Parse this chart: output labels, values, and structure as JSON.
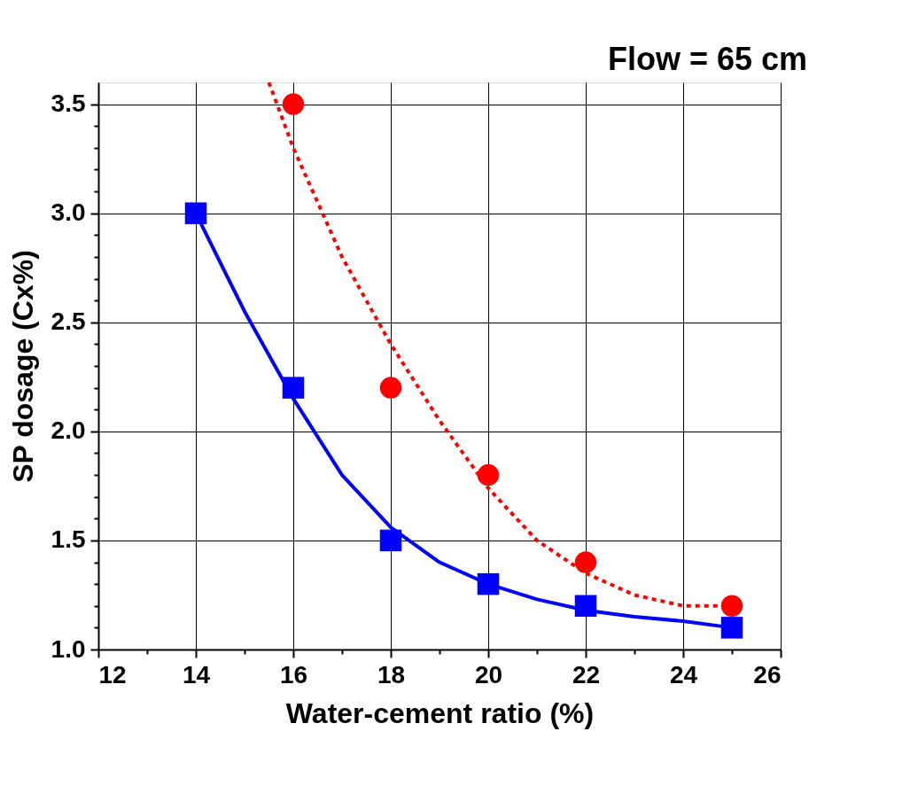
{
  "chart_data": {
    "type": "scatter",
    "xlabel": "Water-cement ratio (%)",
    "ylabel": "SP dosage (Cx%)",
    "annotations": [
      "Flow = 65 cm"
    ],
    "xlim": [
      12,
      26
    ],
    "ylim": [
      1.0,
      3.6
    ],
    "xticks": [
      12,
      {
        "value": 13,
        "label": null
      },
      14,
      {
        "value": 15,
        "label": null
      },
      16,
      {
        "value": 17,
        "label": null
      },
      18,
      {
        "value": 19,
        "label": null
      },
      20,
      {
        "value": 21,
        "label": null
      },
      22,
      {
        "value": 23,
        "label": null
      },
      24,
      {
        "value": 25,
        "label": null
      },
      26
    ],
    "yticks": [
      {
        "value": 1.0,
        "label": "1.0"
      },
      {
        "value": 1.1,
        "label": null
      },
      {
        "value": 1.2,
        "label": null
      },
      {
        "value": 1.3,
        "label": null
      },
      {
        "value": 1.4,
        "label": null
      },
      {
        "value": 1.5,
        "label": "1.5"
      },
      {
        "value": 1.6,
        "label": null
      },
      {
        "value": 1.7,
        "label": null
      },
      {
        "value": 1.8,
        "label": null
      },
      {
        "value": 1.9,
        "label": null
      },
      {
        "value": 2.0,
        "label": "2.0"
      },
      {
        "value": 2.1,
        "label": null
      },
      {
        "value": 2.2,
        "label": null
      },
      {
        "value": 2.3,
        "label": null
      },
      {
        "value": 2.4,
        "label": null
      },
      {
        "value": 2.5,
        "label": "2.5"
      },
      {
        "value": 2.6,
        "label": null
      },
      {
        "value": 2.7,
        "label": null
      },
      {
        "value": 2.8,
        "label": null
      },
      {
        "value": 2.9,
        "label": null
      },
      {
        "value": 3.0,
        "label": "3.0"
      },
      {
        "value": 3.1,
        "label": null
      },
      {
        "value": 3.2,
        "label": null
      },
      {
        "value": 3.3,
        "label": null
      },
      {
        "value": 3.4,
        "label": null
      },
      {
        "value": 3.5,
        "label": "3.5"
      }
    ],
    "grid": true,
    "series": [
      {
        "type": "line",
        "color": "#0000ff",
        "line_style": "solid",
        "marker": "none",
        "x": [
          14,
          15,
          16,
          17,
          18,
          19,
          20,
          21,
          22,
          23,
          24,
          25
        ],
        "values": [
          3.0,
          2.55,
          2.15,
          1.8,
          1.56,
          1.4,
          1.3,
          1.23,
          1.18,
          1.15,
          1.13,
          1.1
        ]
      },
      {
        "type": "line",
        "color": "#ff0000",
        "line_style": "dotted",
        "marker": "none",
        "x": [
          15.5,
          16,
          17,
          18,
          19,
          20,
          21,
          22,
          23,
          24,
          25
        ],
        "values": [
          3.6,
          3.3,
          2.8,
          2.4,
          2.05,
          1.74,
          1.5,
          1.35,
          1.25,
          1.2,
          1.2
        ]
      },
      {
        "color": "#0000ff",
        "marker": "square",
        "x": [
          14,
          16,
          18,
          20,
          22,
          25
        ],
        "values": [
          3.0,
          2.2,
          1.5,
          1.3,
          1.2,
          1.1
        ]
      },
      {
        "color": "#ff0000",
        "marker": "circle",
        "x": [
          16,
          18,
          20,
          22,
          25
        ],
        "values": [
          3.5,
          2.2,
          1.8,
          1.4,
          1.2
        ]
      }
    ]
  }
}
